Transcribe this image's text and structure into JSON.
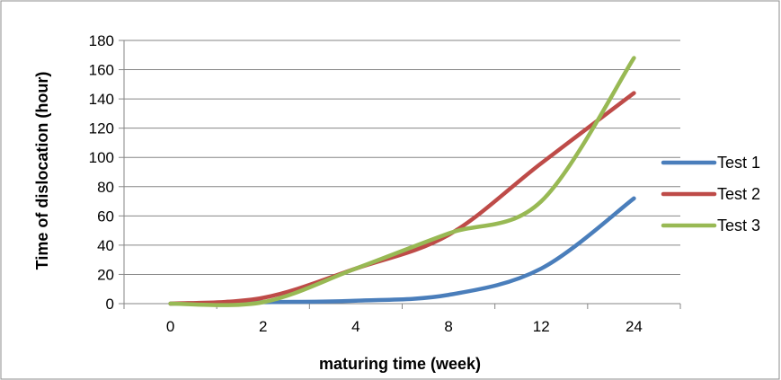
{
  "chart_data": {
    "type": "line",
    "title": "",
    "xlabel": "maturing time (week)",
    "ylabel": "Time of dislocation (hour)",
    "categories": [
      "0",
      "2",
      "4",
      "8",
      "12",
      "24"
    ],
    "ylim": [
      0,
      180
    ],
    "yticks": [
      0,
      20,
      40,
      60,
      80,
      100,
      120,
      140,
      160,
      180
    ],
    "grid": true,
    "legend_position": "right",
    "series": [
      {
        "name": "Test 1",
        "color": "#4a7ebb",
        "values": [
          0,
          1,
          2,
          6,
          24,
          72
        ]
      },
      {
        "name": "Test 2",
        "color": "#be4b48",
        "values": [
          0,
          4,
          24,
          47,
          96,
          144
        ]
      },
      {
        "name": "Test 3",
        "color": "#98b954",
        "values": [
          0,
          1,
          24,
          48,
          70,
          168
        ]
      }
    ]
  }
}
